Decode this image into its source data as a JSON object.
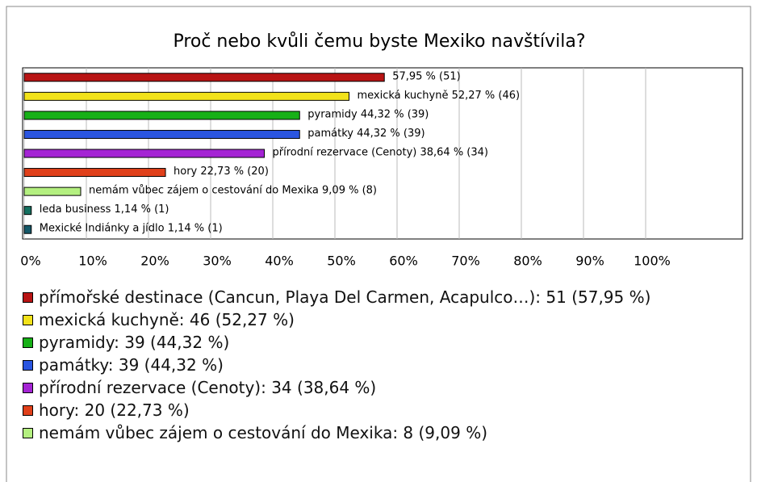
{
  "chart_data": {
    "type": "bar",
    "orientation": "horizontal",
    "title": "Proč nebo kvůli čemu byste Mexiko navštívila?",
    "values": [
      57.95,
      52.27,
      44.32,
      44.32,
      38.64,
      22.73,
      9.09,
      1.14,
      1.14
    ],
    "value_labels": [
      "57,95 % (51)",
      "mexická kuchyně 52,27 % (46)",
      "pyramidy 44,32 % (39)",
      "památky 44,32 % (39)",
      "přírodní rezervace (Cenoty) 38,64 % (34)",
      "hory 22,73 % (20)",
      "nemám vůbec zájem o cestování do Mexika 9,09 % (8)",
      "leda business 1,14 % (1)",
      "Mexické Indiánky a jídlo 1,14 % (1)"
    ],
    "colors": [
      "#b81414",
      "#f2e21a",
      "#17b017",
      "#2a55e0",
      "#a424d4",
      "#e0401a",
      "#b4f080",
      "#147060",
      "#145868"
    ],
    "xlim": [
      0,
      100
    ],
    "xticks": [
      {
        "value": 0,
        "label": "0%"
      },
      {
        "value": 10,
        "label": "10%"
      },
      {
        "value": 20,
        "label": "20%"
      },
      {
        "value": 30,
        "label": "30%"
      },
      {
        "value": 40,
        "label": "40%"
      },
      {
        "value": 50,
        "label": "50%"
      },
      {
        "value": 60,
        "label": "60%"
      },
      {
        "value": 70,
        "label": "70%"
      },
      {
        "value": 80,
        "label": "80%"
      },
      {
        "value": 90,
        "label": "90%"
      },
      {
        "value": 100,
        "label": "100%"
      }
    ],
    "grid": true,
    "legend": [
      {
        "text": "přímořské destinace (Cancun, Playa Del Carmen, Acapulco…): 51 (57,95 %)",
        "color": "#b81414"
      },
      {
        "text": "mexická kuchyně: 46 (52,27 %)",
        "color": "#f2e21a"
      },
      {
        "text": "pyramidy: 39 (44,32 %)",
        "color": "#17b017"
      },
      {
        "text": "památky: 39 (44,32 %)",
        "color": "#2a55e0"
      },
      {
        "text": "přírodní rezervace (Cenoty): 34 (38,64 %)",
        "color": "#a424d4"
      },
      {
        "text": "hory: 20 (22,73 %)",
        "color": "#e0401a"
      },
      {
        "text": "nemám vůbec zájem o cestování do Mexika: 8 (9,09 %)",
        "color": "#b4f080"
      }
    ]
  }
}
